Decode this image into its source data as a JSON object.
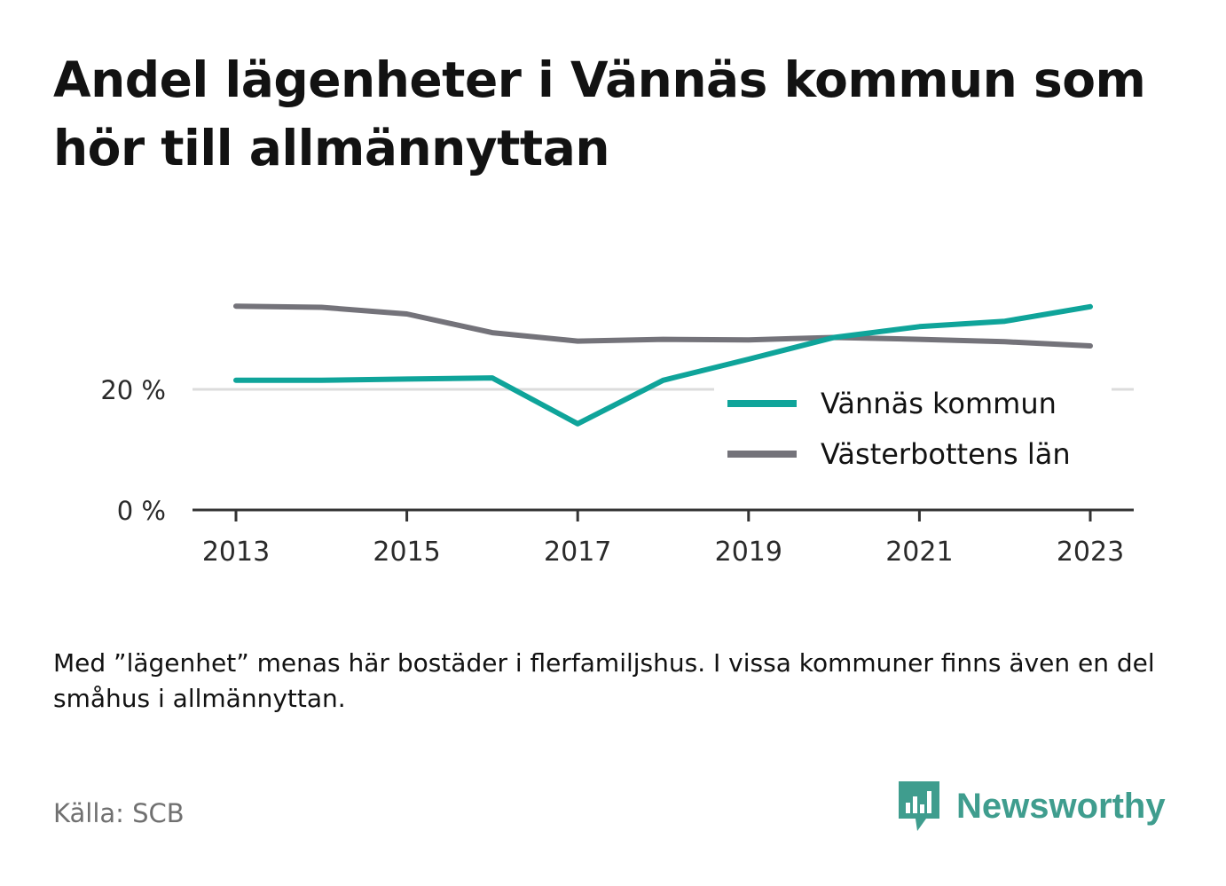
{
  "title": "Andel lägenheter i Vännäs kommun som hör till allmännyttan",
  "note": "Med ”lägenhet” menas här bostäder i flerfamiljshus. I vissa kommuner finns även en del småhus i allmännyttan.",
  "source": "Källa: SCB",
  "brand": {
    "name": "Newsworthy",
    "color": "#3f9d8e",
    "icon": "bar-chart-speech-bubble-icon"
  },
  "chart_data": {
    "type": "line",
    "x": [
      2013,
      2014,
      2015,
      2016,
      2017,
      2018,
      2019,
      2020,
      2021,
      2022,
      2023
    ],
    "xticks": [
      2013,
      2015,
      2017,
      2019,
      2021,
      2023
    ],
    "xtick_labels": [
      "2013",
      "2015",
      "2017",
      "2019",
      "2021",
      "2023"
    ],
    "yticks": [
      0,
      20
    ],
    "ytick_labels": [
      "0 %",
      "20 %"
    ],
    "ylim": [
      0,
      40
    ],
    "grid": true,
    "legend_position": "right",
    "series": [
      {
        "name": "Vännäs kommun",
        "color": "#0fa49a",
        "values": [
          21.5,
          21.5,
          21.7,
          21.9,
          14.3,
          21.5,
          25.0,
          28.6,
          30.4,
          31.3,
          33.7
        ]
      },
      {
        "name": "Västerbottens län",
        "color": "#74737a",
        "values": [
          33.8,
          33.6,
          32.5,
          29.4,
          28.0,
          28.3,
          28.2,
          28.6,
          28.3,
          27.9,
          27.2
        ]
      }
    ]
  }
}
